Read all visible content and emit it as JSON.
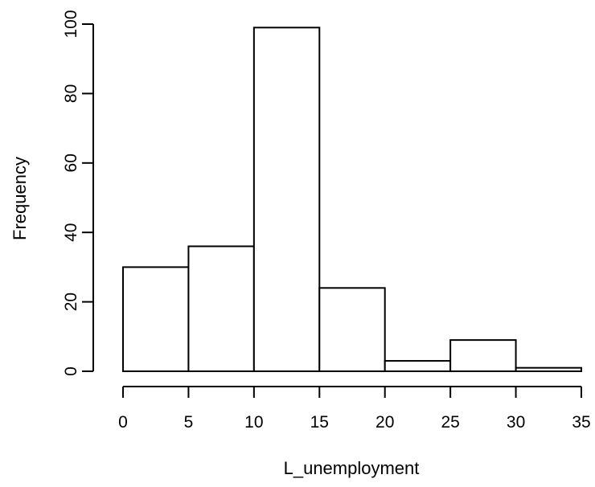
{
  "chart_data": {
    "type": "bar",
    "histogram": true,
    "title": "",
    "xlabel": "L_unemployment",
    "ylabel": "Frequency",
    "bins": [
      {
        "from": 0,
        "to": 5,
        "value": 30
      },
      {
        "from": 5,
        "to": 10,
        "value": 36
      },
      {
        "from": 10,
        "to": 15,
        "value": 99
      },
      {
        "from": 15,
        "to": 20,
        "value": 24
      },
      {
        "from": 20,
        "to": 25,
        "value": 3
      },
      {
        "from": 25,
        "to": 30,
        "value": 9
      },
      {
        "from": 30,
        "to": 35,
        "value": 1
      }
    ],
    "xlim": [
      0,
      35
    ],
    "ylim": [
      0,
      100
    ],
    "x_ticks": [
      "0",
      "5",
      "10",
      "15",
      "20",
      "25",
      "30",
      "35"
    ],
    "y_ticks": [
      "0",
      "20",
      "40",
      "60",
      "80",
      "100"
    ],
    "grid": false,
    "legend": "none",
    "bar_fill": "#ffffff",
    "bar_stroke": "#000000"
  }
}
